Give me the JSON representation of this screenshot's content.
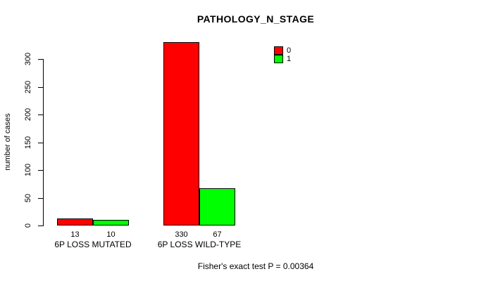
{
  "chart_data": {
    "type": "bar",
    "title": "PATHOLOGY_N_STAGE",
    "xlabel": "",
    "ylabel": "number of cases",
    "ylim": [
      0,
      300
    ],
    "yticks": [
      0,
      50,
      100,
      150,
      200,
      250,
      300
    ],
    "categories": [
      "6P LOSS MUTATED",
      "6P LOSS WILD-TYPE"
    ],
    "series": [
      {
        "name": "0",
        "color": "#ff0000",
        "values": [
          13,
          330
        ]
      },
      {
        "name": "1",
        "color": "#00ff00",
        "values": [
          10,
          67
        ]
      }
    ],
    "bar_value_labels_shown": true,
    "legend": {
      "position": "top-right-inside",
      "entries": [
        "0",
        "1"
      ]
    },
    "annotation": "Fisher's exact test P = 0.00364",
    "grid": false,
    "background_color": "#ffffff",
    "axis_color": "#000000",
    "text_color": "#000000"
  }
}
